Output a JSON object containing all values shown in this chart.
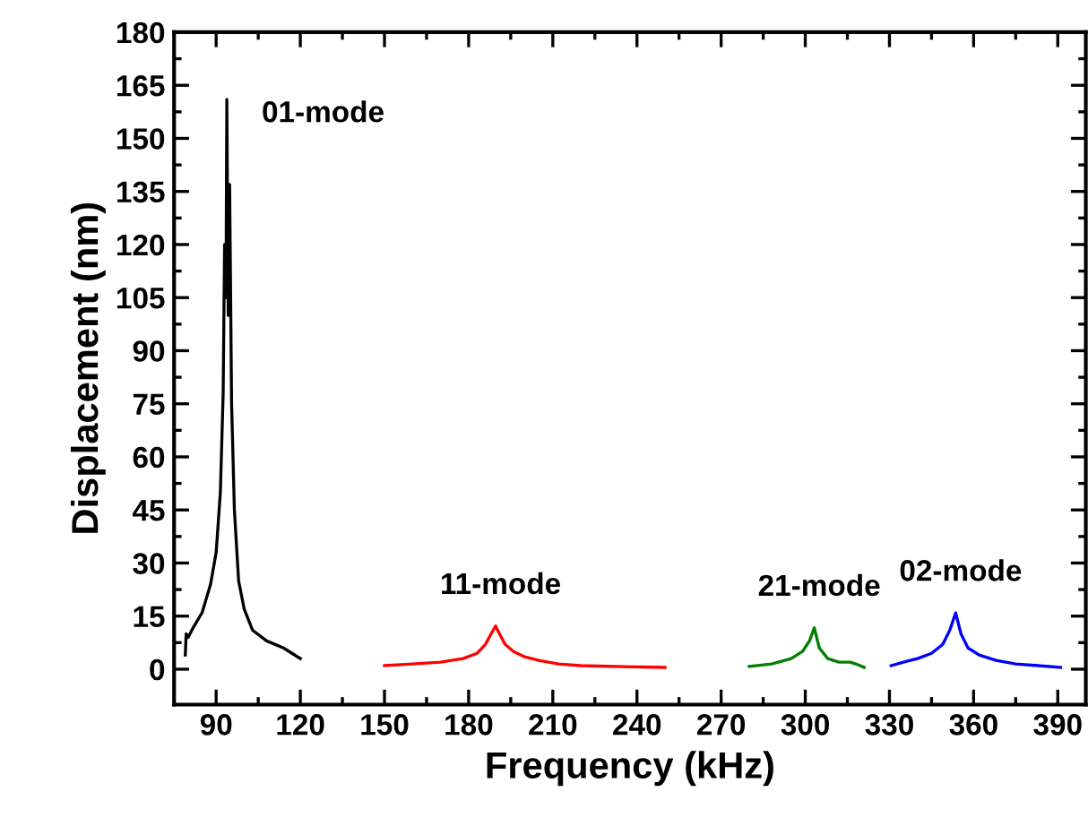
{
  "chart_data": {
    "type": "line",
    "xlabel": "Frequency (kHz)",
    "ylabel": "Displacement (nm)",
    "xlim": [
      75,
      400
    ],
    "xticks": [
      90,
      120,
      150,
      180,
      210,
      240,
      270,
      300,
      330,
      360,
      390
    ],
    "ylim": [
      -10,
      180
    ],
    "yticks": [
      0,
      15,
      30,
      45,
      60,
      75,
      90,
      105,
      120,
      135,
      150,
      165,
      180
    ],
    "grid": false,
    "legend": false,
    "line_style": "solid",
    "marker": "none",
    "series": [
      {
        "color": "#000000",
        "x": [
          79,
          79.3,
          80,
          82,
          85,
          88,
          90,
          91.5,
          92.5,
          93,
          93.5,
          93.8,
          94.3,
          94.8,
          95.5,
          96.5,
          98,
          100,
          103,
          108,
          114,
          120
        ],
        "values": [
          4,
          10,
          9,
          12,
          16,
          24,
          33,
          50,
          78,
          120,
          105,
          161,
          100,
          137,
          75,
          45,
          25,
          17,
          11,
          8,
          6,
          3
        ]
      },
      {
        "color": "#ff0000",
        "x": [
          150,
          160,
          170,
          178,
          183,
          186,
          188,
          189.6,
          191,
          193,
          196,
          200,
          205,
          212,
          220,
          235,
          250
        ],
        "values": [
          1,
          1.5,
          2,
          3,
          4.5,
          7,
          10,
          12.2,
          10,
          7,
          5,
          3.5,
          2.5,
          1.5,
          1,
          0.7,
          0.5
        ]
      },
      {
        "color": "#008000",
        "x": [
          280,
          288,
          295,
          299,
          301.5,
          303.2,
          305,
          308,
          312,
          316,
          318,
          321
        ],
        "values": [
          0.8,
          1.5,
          3,
          5,
          8,
          11.7,
          6,
          3,
          2,
          2,
          1.5,
          0.5
        ]
      },
      {
        "color": "#0000ff",
        "x": [
          330.6,
          335,
          340,
          345,
          349,
          351.5,
          353.6,
          355.5,
          358,
          362,
          368,
          375,
          383,
          391
        ],
        "values": [
          1,
          2,
          3,
          4.5,
          7,
          11,
          15.9,
          10,
          6,
          4,
          2.5,
          1.5,
          1,
          0.5
        ]
      }
    ],
    "annotations": [
      {
        "text": "01-mode",
        "x": 93.8,
        "y": 161
      },
      {
        "text": "11-mode",
        "x": 189.6,
        "y": 12.2
      },
      {
        "text": "21-mode",
        "x": 303.2,
        "y": 11.7
      },
      {
        "text": "02-mode",
        "x": 353.6,
        "y": 15.9
      }
    ]
  }
}
